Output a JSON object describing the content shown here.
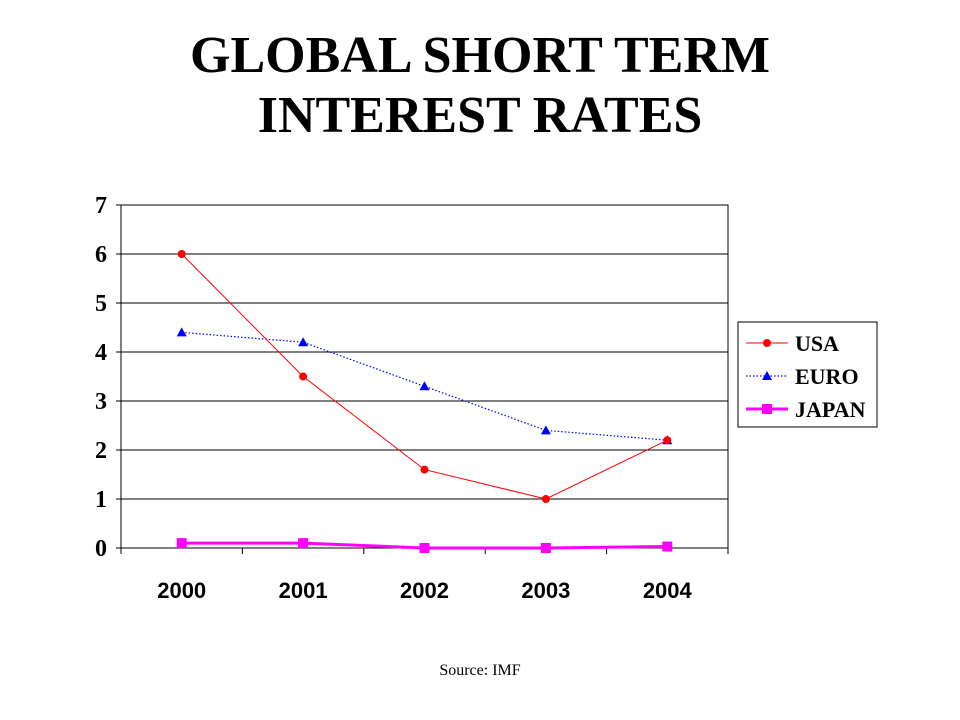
{
  "title_lines": [
    "GLOBAL SHORT TERM",
    "INTEREST RATES"
  ],
  "source": "Source: IMF",
  "chart_data": {
    "type": "line",
    "categories": [
      "2000",
      "2001",
      "2002",
      "2003",
      "2004"
    ],
    "ylim": [
      0,
      7
    ],
    "yticks": [
      "0",
      "1",
      "2",
      "3",
      "4",
      "5",
      "6",
      "7"
    ],
    "grid": true,
    "legend_position": "right",
    "series": [
      {
        "name": "USA",
        "values": [
          6.0,
          3.5,
          1.6,
          1.0,
          2.2
        ],
        "color": "#ff0000",
        "marker": "circle",
        "line": "solid"
      },
      {
        "name": "EURO",
        "values": [
          4.4,
          4.2,
          3.3,
          2.4,
          2.2
        ],
        "color": "#0000ff",
        "marker": "triangle",
        "line": "dotted"
      },
      {
        "name": "JAPAN",
        "values": [
          0.1,
          0.1,
          0.0,
          0.0,
          0.03
        ],
        "color": "#ff00ff",
        "marker": "square",
        "line": "thick"
      }
    ]
  }
}
